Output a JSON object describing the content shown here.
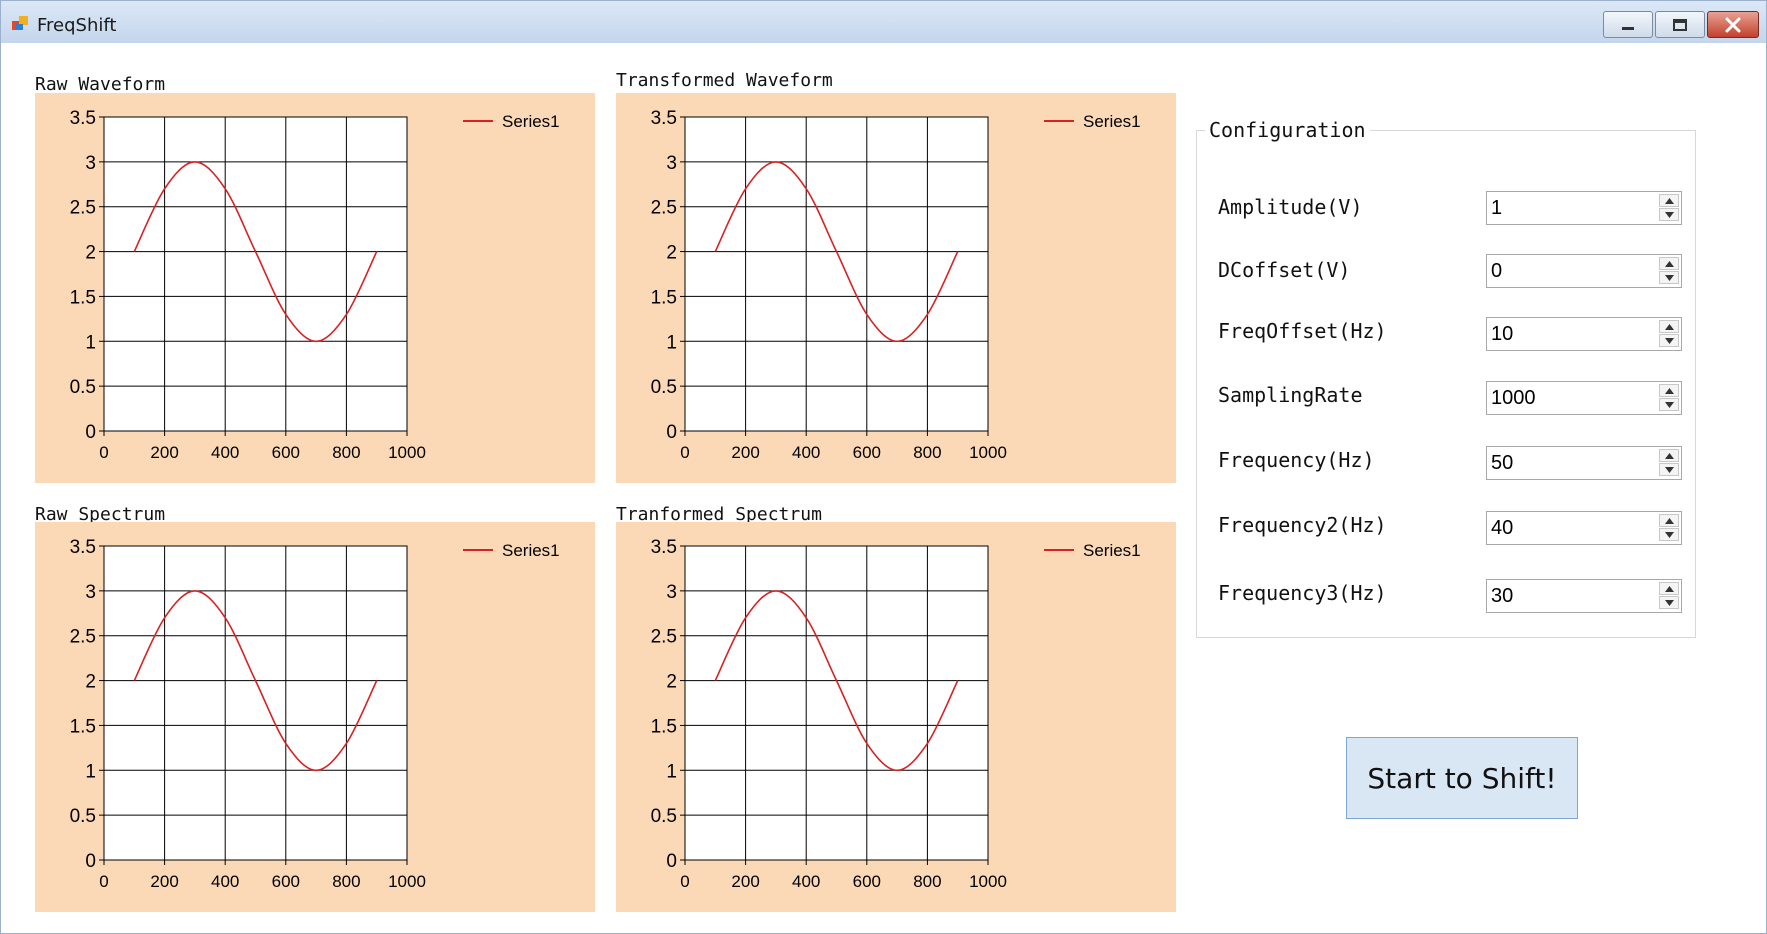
{
  "window": {
    "title": "FreqShift",
    "controls": [
      "minimize-icon",
      "maximize-icon",
      "close-icon"
    ]
  },
  "colors": {
    "chart_background": "#fcd9b6",
    "series_line": "#d62222",
    "grid": "#000000",
    "button_background": "#d9e6f4",
    "close_button": "#c2412d"
  },
  "chart_data": [
    {
      "id": "raw-waveform",
      "label": "Raw Waveform",
      "type": "line",
      "legend": {
        "entries": [
          "Series1"
        ],
        "placement": "top-right"
      },
      "series": [
        {
          "name": "Series1",
          "x": [
            100,
            200,
            300,
            400,
            500,
            600,
            700,
            800,
            900
          ],
          "y": [
            2,
            2.7,
            3,
            2.7,
            2,
            1.3,
            1,
            1.3,
            2
          ]
        }
      ],
      "xlim": [
        0,
        1000
      ],
      "ylim": [
        0,
        3.5
      ],
      "xticks": [
        0,
        200,
        400,
        600,
        800,
        1000
      ],
      "yticks": [
        0,
        0.5,
        1,
        1.5,
        2,
        2.5,
        3,
        3.5
      ],
      "xticklabels": [
        "0",
        "200",
        "400",
        "600",
        "800",
        "1000"
      ],
      "yticklabels": [
        "0",
        "0.5",
        "1",
        "1.5",
        "2",
        "2.5",
        "3",
        "3.5"
      ],
      "grid": true
    },
    {
      "id": "transformed-waveform",
      "label": "Transformed Waveform",
      "type": "line",
      "legend": {
        "entries": [
          "Series1"
        ],
        "placement": "top-right"
      },
      "series": [
        {
          "name": "Series1",
          "x": [
            100,
            200,
            300,
            400,
            500,
            600,
            700,
            800,
            900
          ],
          "y": [
            2,
            2.7,
            3,
            2.7,
            2,
            1.3,
            1,
            1.3,
            2
          ]
        }
      ],
      "xlim": [
        0,
        1000
      ],
      "ylim": [
        0,
        3.5
      ],
      "xticks": [
        0,
        200,
        400,
        600,
        800,
        1000
      ],
      "yticks": [
        0,
        0.5,
        1,
        1.5,
        2,
        2.5,
        3,
        3.5
      ],
      "xticklabels": [
        "0",
        "200",
        "400",
        "600",
        "800",
        "1000"
      ],
      "yticklabels": [
        "0",
        "0.5",
        "1",
        "1.5",
        "2",
        "2.5",
        "3",
        "3.5"
      ],
      "grid": true
    },
    {
      "id": "raw-spectrum",
      "label": "Raw Spectrum",
      "type": "line",
      "legend": {
        "entries": [
          "Series1"
        ],
        "placement": "top-right"
      },
      "series": [
        {
          "name": "Series1",
          "x": [
            100,
            200,
            300,
            400,
            500,
            600,
            700,
            800,
            900
          ],
          "y": [
            2,
            2.7,
            3,
            2.7,
            2,
            1.3,
            1,
            1.3,
            2
          ]
        }
      ],
      "xlim": [
        0,
        1000
      ],
      "ylim": [
        0,
        3.5
      ],
      "xticks": [
        0,
        200,
        400,
        600,
        800,
        1000
      ],
      "yticks": [
        0,
        0.5,
        1,
        1.5,
        2,
        2.5,
        3,
        3.5
      ],
      "xticklabels": [
        "0",
        "200",
        "400",
        "600",
        "800",
        "1000"
      ],
      "yticklabels": [
        "0",
        "0.5",
        "1",
        "1.5",
        "2",
        "2.5",
        "3",
        "3.5"
      ],
      "grid": true
    },
    {
      "id": "transformed-spectrum",
      "label": "Tranformed Spectrum",
      "type": "line",
      "legend": {
        "entries": [
          "Series1"
        ],
        "placement": "top-right"
      },
      "series": [
        {
          "name": "Series1",
          "x": [
            100,
            200,
            300,
            400,
            500,
            600,
            700,
            800,
            900
          ],
          "y": [
            2,
            2.7,
            3,
            2.7,
            2,
            1.3,
            1,
            1.3,
            2
          ]
        }
      ],
      "xlim": [
        0,
        1000
      ],
      "ylim": [
        0,
        3.5
      ],
      "xticks": [
        0,
        200,
        400,
        600,
        800,
        1000
      ],
      "yticks": [
        0,
        0.5,
        1,
        1.5,
        2,
        2.5,
        3,
        3.5
      ],
      "xticklabels": [
        "0",
        "200",
        "400",
        "600",
        "800",
        "1000"
      ],
      "yticklabels": [
        "0",
        "0.5",
        "1",
        "1.5",
        "2",
        "2.5",
        "3",
        "3.5"
      ],
      "grid": true
    }
  ],
  "configuration": {
    "title": "Configuration",
    "fields": [
      {
        "label": "Amplitude(V)",
        "value": "1"
      },
      {
        "label": "DCoffset(V)",
        "value": "0"
      },
      {
        "label": "FreqOffset(Hz)",
        "value": "10"
      },
      {
        "label": "SamplingRate",
        "value": "1000"
      },
      {
        "label": "Frequency(Hz)",
        "value": "50"
      },
      {
        "label": "Frequency2(Hz)",
        "value": "40"
      },
      {
        "label": "Frequency3(Hz)",
        "value": "30"
      }
    ]
  },
  "start_button": {
    "label": "Start to Shift!"
  }
}
